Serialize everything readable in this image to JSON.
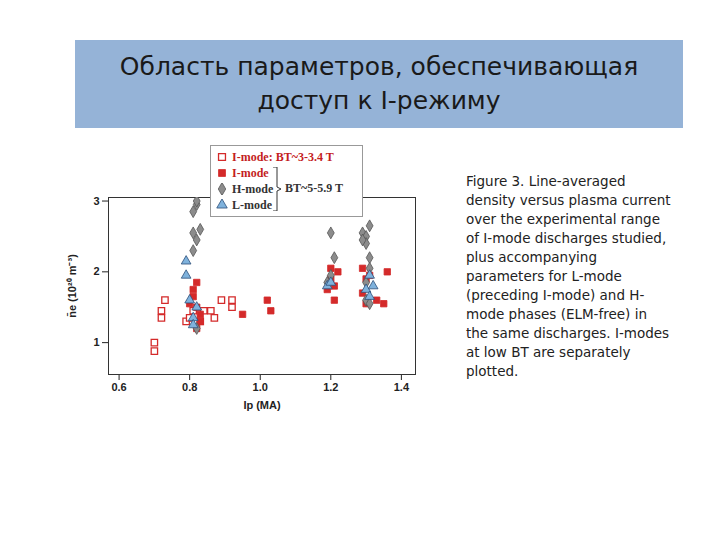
{
  "slide": {
    "title": "Область параметров, обеспечивающая\nдоступ к I-режиму",
    "caption": "Figure 3. Line-averaged density versus plasma current over the experimental range of I-mode discharges studied, plus accompanying parameters for L-mode (preceding I-mode) and H-mode phases (ELM-free) in the same discharges. I-modes at low BT are separately plotted."
  },
  "chart_data": {
    "type": "scatter",
    "x_label": "Ip (MA)",
    "y_label": "n̄e (10²⁰ m⁻³)",
    "xlim": [
      0.57,
      1.44
    ],
    "xticks": [
      0.6,
      0.8,
      {
        "value": 1,
        "label": "1.0"
      },
      1.2,
      1.4
    ],
    "ylim": [
      0.55,
      3.05
    ],
    "yticks": [
      1,
      2,
      3
    ],
    "grid": false,
    "legend": "top",
    "annotations": [
      "BT~5-5.9 T"
    ],
    "series": [
      {
        "name": "I-mode: BT~3-3.4 T",
        "color": "#d42a2a",
        "marker": "square-open",
        "x": [
          0.7,
          0.7,
          0.72,
          0.72,
          0.73,
          0.79,
          0.8,
          0.81,
          0.83,
          0.84,
          0.86,
          0.87,
          0.89,
          0.92,
          0.92
        ],
        "values": [
          0.88,
          1.0,
          1.35,
          1.45,
          1.6,
          1.3,
          1.35,
          1.45,
          1.3,
          1.45,
          1.45,
          1.35,
          1.6,
          1.5,
          1.6
        ]
      },
      {
        "name": "I-mode",
        "color": "#d42a2a",
        "marker": "square",
        "x": [
          0.8,
          0.81,
          0.81,
          0.82,
          0.82,
          0.82,
          0.83,
          0.83,
          0.95,
          1.02,
          1.03,
          1.19,
          1.2,
          1.2,
          1.21,
          1.22,
          1.21,
          1.29,
          1.29,
          1.3,
          1.31,
          1.3,
          1.33,
          1.35,
          1.36
        ],
        "values": [
          1.55,
          1.65,
          1.75,
          1.5,
          1.2,
          1.85,
          1.4,
          1.3,
          1.4,
          1.6,
          1.45,
          1.75,
          1.9,
          2.05,
          1.6,
          2.0,
          1.8,
          1.7,
          2.05,
          1.9,
          1.95,
          1.55,
          1.6,
          1.55,
          2.0
        ]
      },
      {
        "name": "H-mode",
        "color": "#8c8c8c",
        "marker": "diamond",
        "x": [
          0.81,
          0.81,
          0.82,
          0.82,
          0.82,
          0.83,
          0.81,
          0.82,
          1.2,
          1.21,
          1.2,
          1.19,
          1.29,
          1.3,
          1.3,
          1.31,
          1.29,
          1.31,
          1.31,
          1.3,
          1.3,
          1.31
        ],
        "values": [
          2.85,
          2.55,
          2.45,
          2.95,
          3.0,
          2.6,
          2.3,
          1.2,
          2.55,
          2.2,
          1.95,
          1.85,
          2.55,
          2.5,
          2.4,
          2.65,
          2.45,
          2.2,
          2.05,
          1.85,
          1.6,
          1.55
        ]
      },
      {
        "name": "L-mode",
        "color": "#7fb2dc",
        "marker": "triangle",
        "x": [
          0.79,
          0.79,
          0.8,
          0.81,
          0.81,
          0.82,
          1.19,
          1.2,
          1.3,
          1.31,
          1.31,
          1.32
        ],
        "values": [
          1.95,
          2.15,
          1.6,
          1.35,
          1.25,
          1.5,
          1.8,
          1.85,
          1.75,
          1.65,
          1.95,
          1.8
        ]
      }
    ]
  }
}
